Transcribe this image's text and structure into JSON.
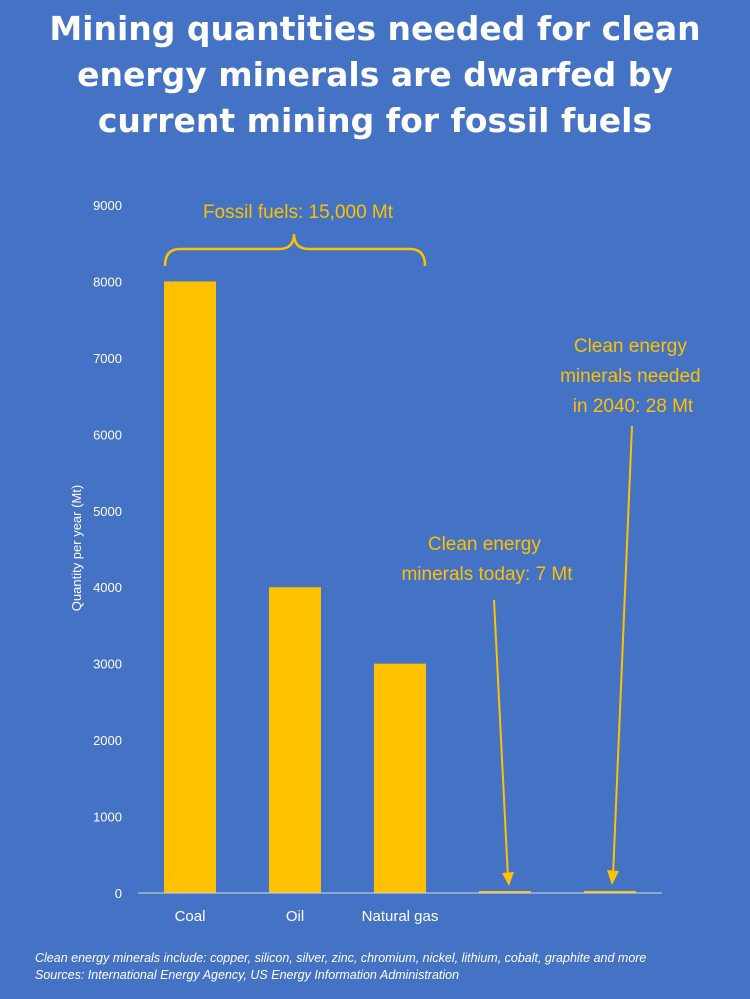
{
  "title": {
    "lines": [
      "Mining quantities needed for clean",
      "energy minerals are dwarfed by",
      "current mining for fossil fuels"
    ]
  },
  "footer": {
    "note": "Clean energy minerals include: copper, silicon, silver, zinc, chromium, nickel, lithium, cobalt, graphite and more",
    "sources": "Sources: International Energy Agency, US Energy Information Administration"
  },
  "colors": {
    "background": "#4472c4",
    "bar": "#ffc000",
    "text": "#ffffff",
    "annotation": "#ffc000"
  },
  "chart_data": {
    "type": "bar",
    "categories": [
      "Coal",
      "Oil",
      "Natural gas",
      "",
      ""
    ],
    "values": [
      8000,
      4000,
      3000,
      7,
      28
    ],
    "ylabel": "Quantity per year (Mt)",
    "xlabel": "",
    "ylim": [
      0,
      9000
    ],
    "yticks": [
      0,
      1000,
      2000,
      3000,
      4000,
      5000,
      6000,
      7000,
      8000,
      9000
    ],
    "grid": false,
    "annotations": {
      "fossil": "Fossil fuels: 15,000 Mt",
      "today": [
        "Clean energy",
        "minerals today: 7 Mt"
      ],
      "needed": [
        "Clean energy",
        "minerals needed",
        "in 2040: 28 Mt"
      ]
    }
  }
}
